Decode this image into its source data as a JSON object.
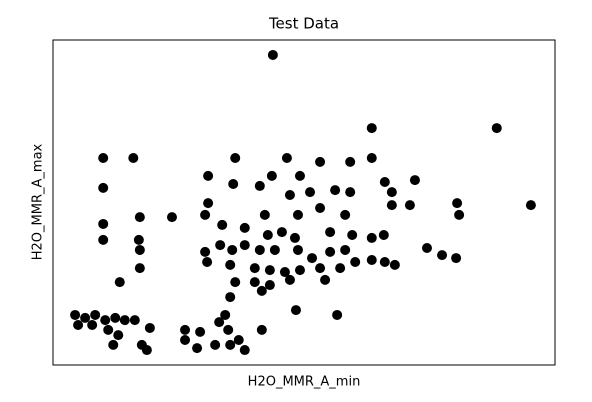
{
  "chart_data": {
    "type": "scatter",
    "title": "Test Data",
    "x_label": "H2O_MMR_A_min",
    "y_label": "H2O_MMR_A_max",
    "color": "#000000",
    "xlim": [
      0,
      100
    ],
    "ylim": [
      0,
      100
    ],
    "x": [
      43.8,
      63.5,
      88.4,
      95.2,
      10,
      16,
      10,
      10,
      10,
      17.3,
      17.1,
      17.3,
      17.3,
      13.3,
      23.7,
      36.3,
      30.9,
      30.9,
      35.9,
      46.6,
      53.2,
      59.2,
      63.5,
      72.1,
      43.6,
      49.2,
      41.2,
      47.2,
      51.2,
      56.2,
      59.2,
      66.1,
      67.5,
      71.1,
      67.5,
      80.5,
      80.9,
      42.2,
      48.8,
      53.2,
      58.2,
      30.3,
      33.7,
      38.2,
      42.8,
      45.6,
      48.2,
      55.2,
      59.6,
      63.5,
      65.9,
      30.3,
      33.3,
      35.7,
      38.2,
      41.2,
      44.2,
      48.8,
      51.6,
      55.2,
      58.2,
      60.2,
      63.5,
      66.1,
      68.1,
      74.5,
      77.5,
      80.3,
      30.7,
      35.3,
      40.2,
      43.2,
      46.2,
      49.2,
      53.2,
      57.2,
      40.2,
      43.2,
      47.2,
      54.2,
      36.3,
      41.6,
      35.3,
      48.4,
      56.6,
      4.4,
      6.4,
      8.4,
      10.4,
      12.4,
      14.3,
      5,
      7.8,
      11,
      13,
      16.3,
      19.3,
      12,
      17.7,
      18.7,
      26.3,
      26.3,
      28.7,
      29.3,
      32.3,
      34.3,
      34.9,
      37,
      38.2,
      41.6,
      35.3,
      33.1
    ],
    "y": [
      95.4,
      72.9,
      72.9,
      49.2,
      63.7,
      63.7,
      54.5,
      43.4,
      38.5,
      45.5,
      38.5,
      35.4,
      29.8,
      25.5,
      45.5,
      63.7,
      58.2,
      49.8,
      55.7,
      63.7,
      62.5,
      62.5,
      63.7,
      56.9,
      58.2,
      58.2,
      55.1,
      52.3,
      53.2,
      53.8,
      53.2,
      56.3,
      53.2,
      49.2,
      49.2,
      49.8,
      46.2,
      46.2,
      46.2,
      48.3,
      46.2,
      46.2,
      43.1,
      42.2,
      40,
      40.9,
      39.1,
      40.9,
      40,
      39.1,
      40,
      34.8,
      36.9,
      35.4,
      36.9,
      35.4,
      35.4,
      35.4,
      32.9,
      34.8,
      35.4,
      31.7,
      32.3,
      31.7,
      30.8,
      36,
      33.8,
      32.9,
      31.7,
      30.8,
      29.8,
      29.2,
      28.6,
      29.2,
      29.8,
      29.8,
      25.5,
      24.6,
      26.2,
      26.2,
      25.5,
      22.8,
      20.9,
      16.9,
      15.4,
      15.4,
      14.5,
      15.4,
      13.8,
      14.5,
      13.8,
      12.3,
      12.3,
      10.8,
      9.2,
      13.8,
      11.4,
      6.2,
      6.2,
      4.6,
      10.8,
      7.7,
      5.2,
      10.2,
      6.2,
      15.4,
      10.8,
      7.7,
      4.6,
      10.8,
      6.2,
      13.2
    ]
  }
}
